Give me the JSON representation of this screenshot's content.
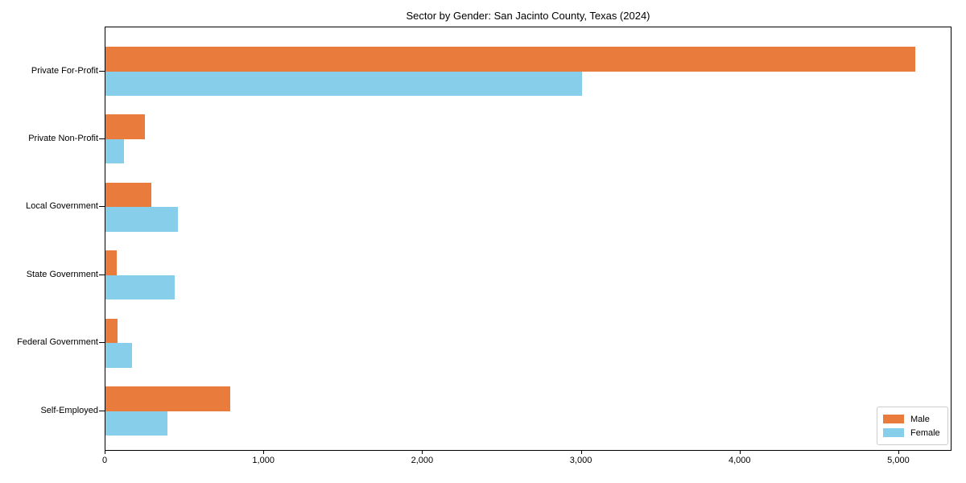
{
  "title": "Sector by Gender: San Jacinto County, Texas (2024)",
  "colors": {
    "male": "#e97b3d",
    "female": "#87ceeb",
    "frame": "#000000",
    "background": "#ffffff",
    "legend_border": "#cccccc"
  },
  "chart_data": {
    "type": "bar",
    "orientation": "horizontal",
    "title": "Sector by Gender: San Jacinto County, Texas (2024)",
    "xlabel": "",
    "ylabel": "",
    "categories": [
      "Private For-Profit",
      "Private Non-Profit",
      "Local Government",
      "State Government",
      "Federal Government",
      "Self-Employed"
    ],
    "series": [
      {
        "name": "Male",
        "color": "#e97b3d",
        "values": [
          5100,
          250,
          290,
          70,
          75,
          785
        ]
      },
      {
        "name": "Female",
        "color": "#87ceeb",
        "values": [
          3000,
          115,
          455,
          435,
          165,
          390
        ]
      }
    ],
    "xlim": [
      0,
      5335
    ],
    "xticks": [
      0,
      1000,
      2000,
      3000,
      4000,
      5000
    ],
    "xtick_labels": [
      "0",
      "1,000",
      "2,000",
      "3,000",
      "4,000",
      "5,000"
    ],
    "grid": false,
    "legend_position": "lower right"
  },
  "legend": {
    "entries": [
      {
        "label": "Male",
        "color": "#e97b3d"
      },
      {
        "label": "Female",
        "color": "#87ceeb"
      }
    ]
  }
}
